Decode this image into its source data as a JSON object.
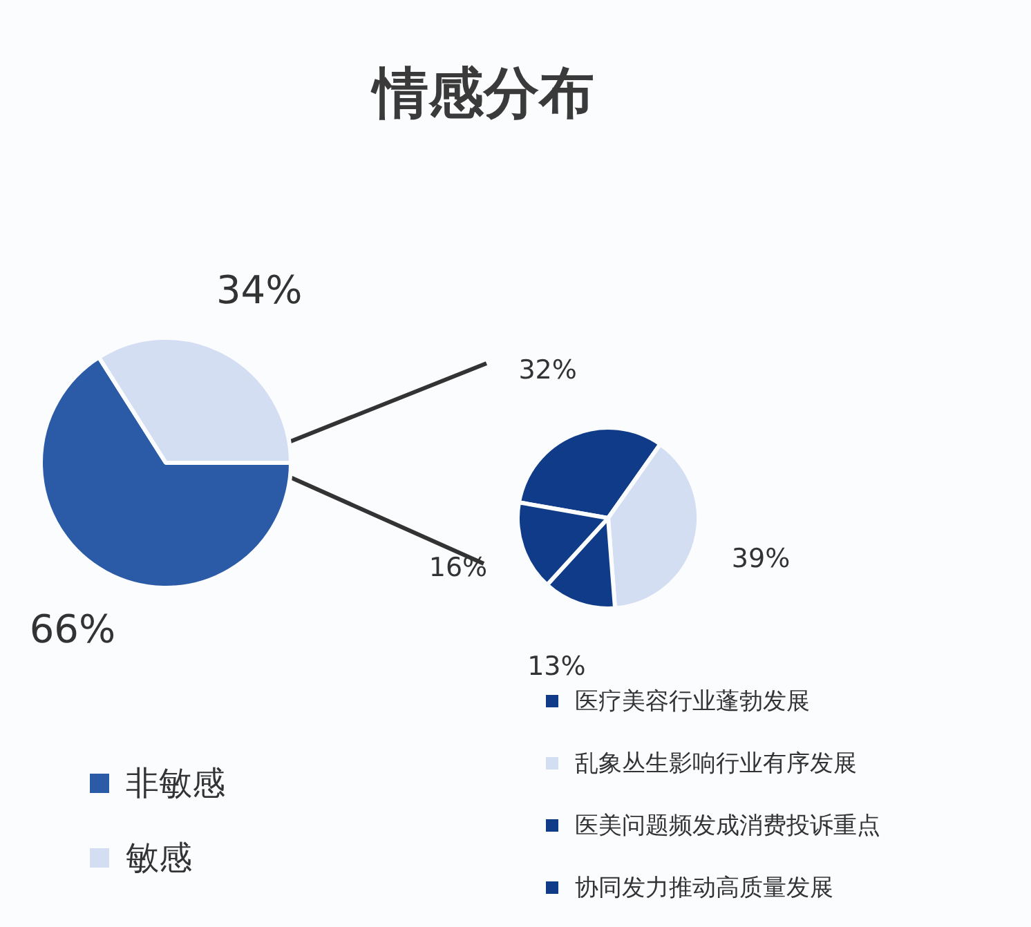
{
  "chart_data": [
    {
      "type": "pie",
      "title": "情感分布",
      "categories": [
        "非敏感",
        "敏感"
      ],
      "values": [
        66,
        34
      ],
      "colors": [
        "#2b5aa6",
        "#d3def2"
      ],
      "value_labels": [
        "66%",
        "34%"
      ],
      "legend": "bottom left"
    },
    {
      "type": "pie",
      "categories": [
        "医疗美容行业蓬勃发展",
        "乱象丛生影响行业有序发展",
        "医美问题频发成消费投诉重点",
        "协同发力推动高质量发展"
      ],
      "values": [
        32,
        39,
        13,
        16
      ],
      "colors": [
        "#0f3b88",
        "#d3def2",
        "#0f3b88",
        "#0f3b88"
      ],
      "value_labels": [
        "32%",
        "39%",
        "13%",
        "16%"
      ],
      "legend": "bottom right"
    }
  ]
}
